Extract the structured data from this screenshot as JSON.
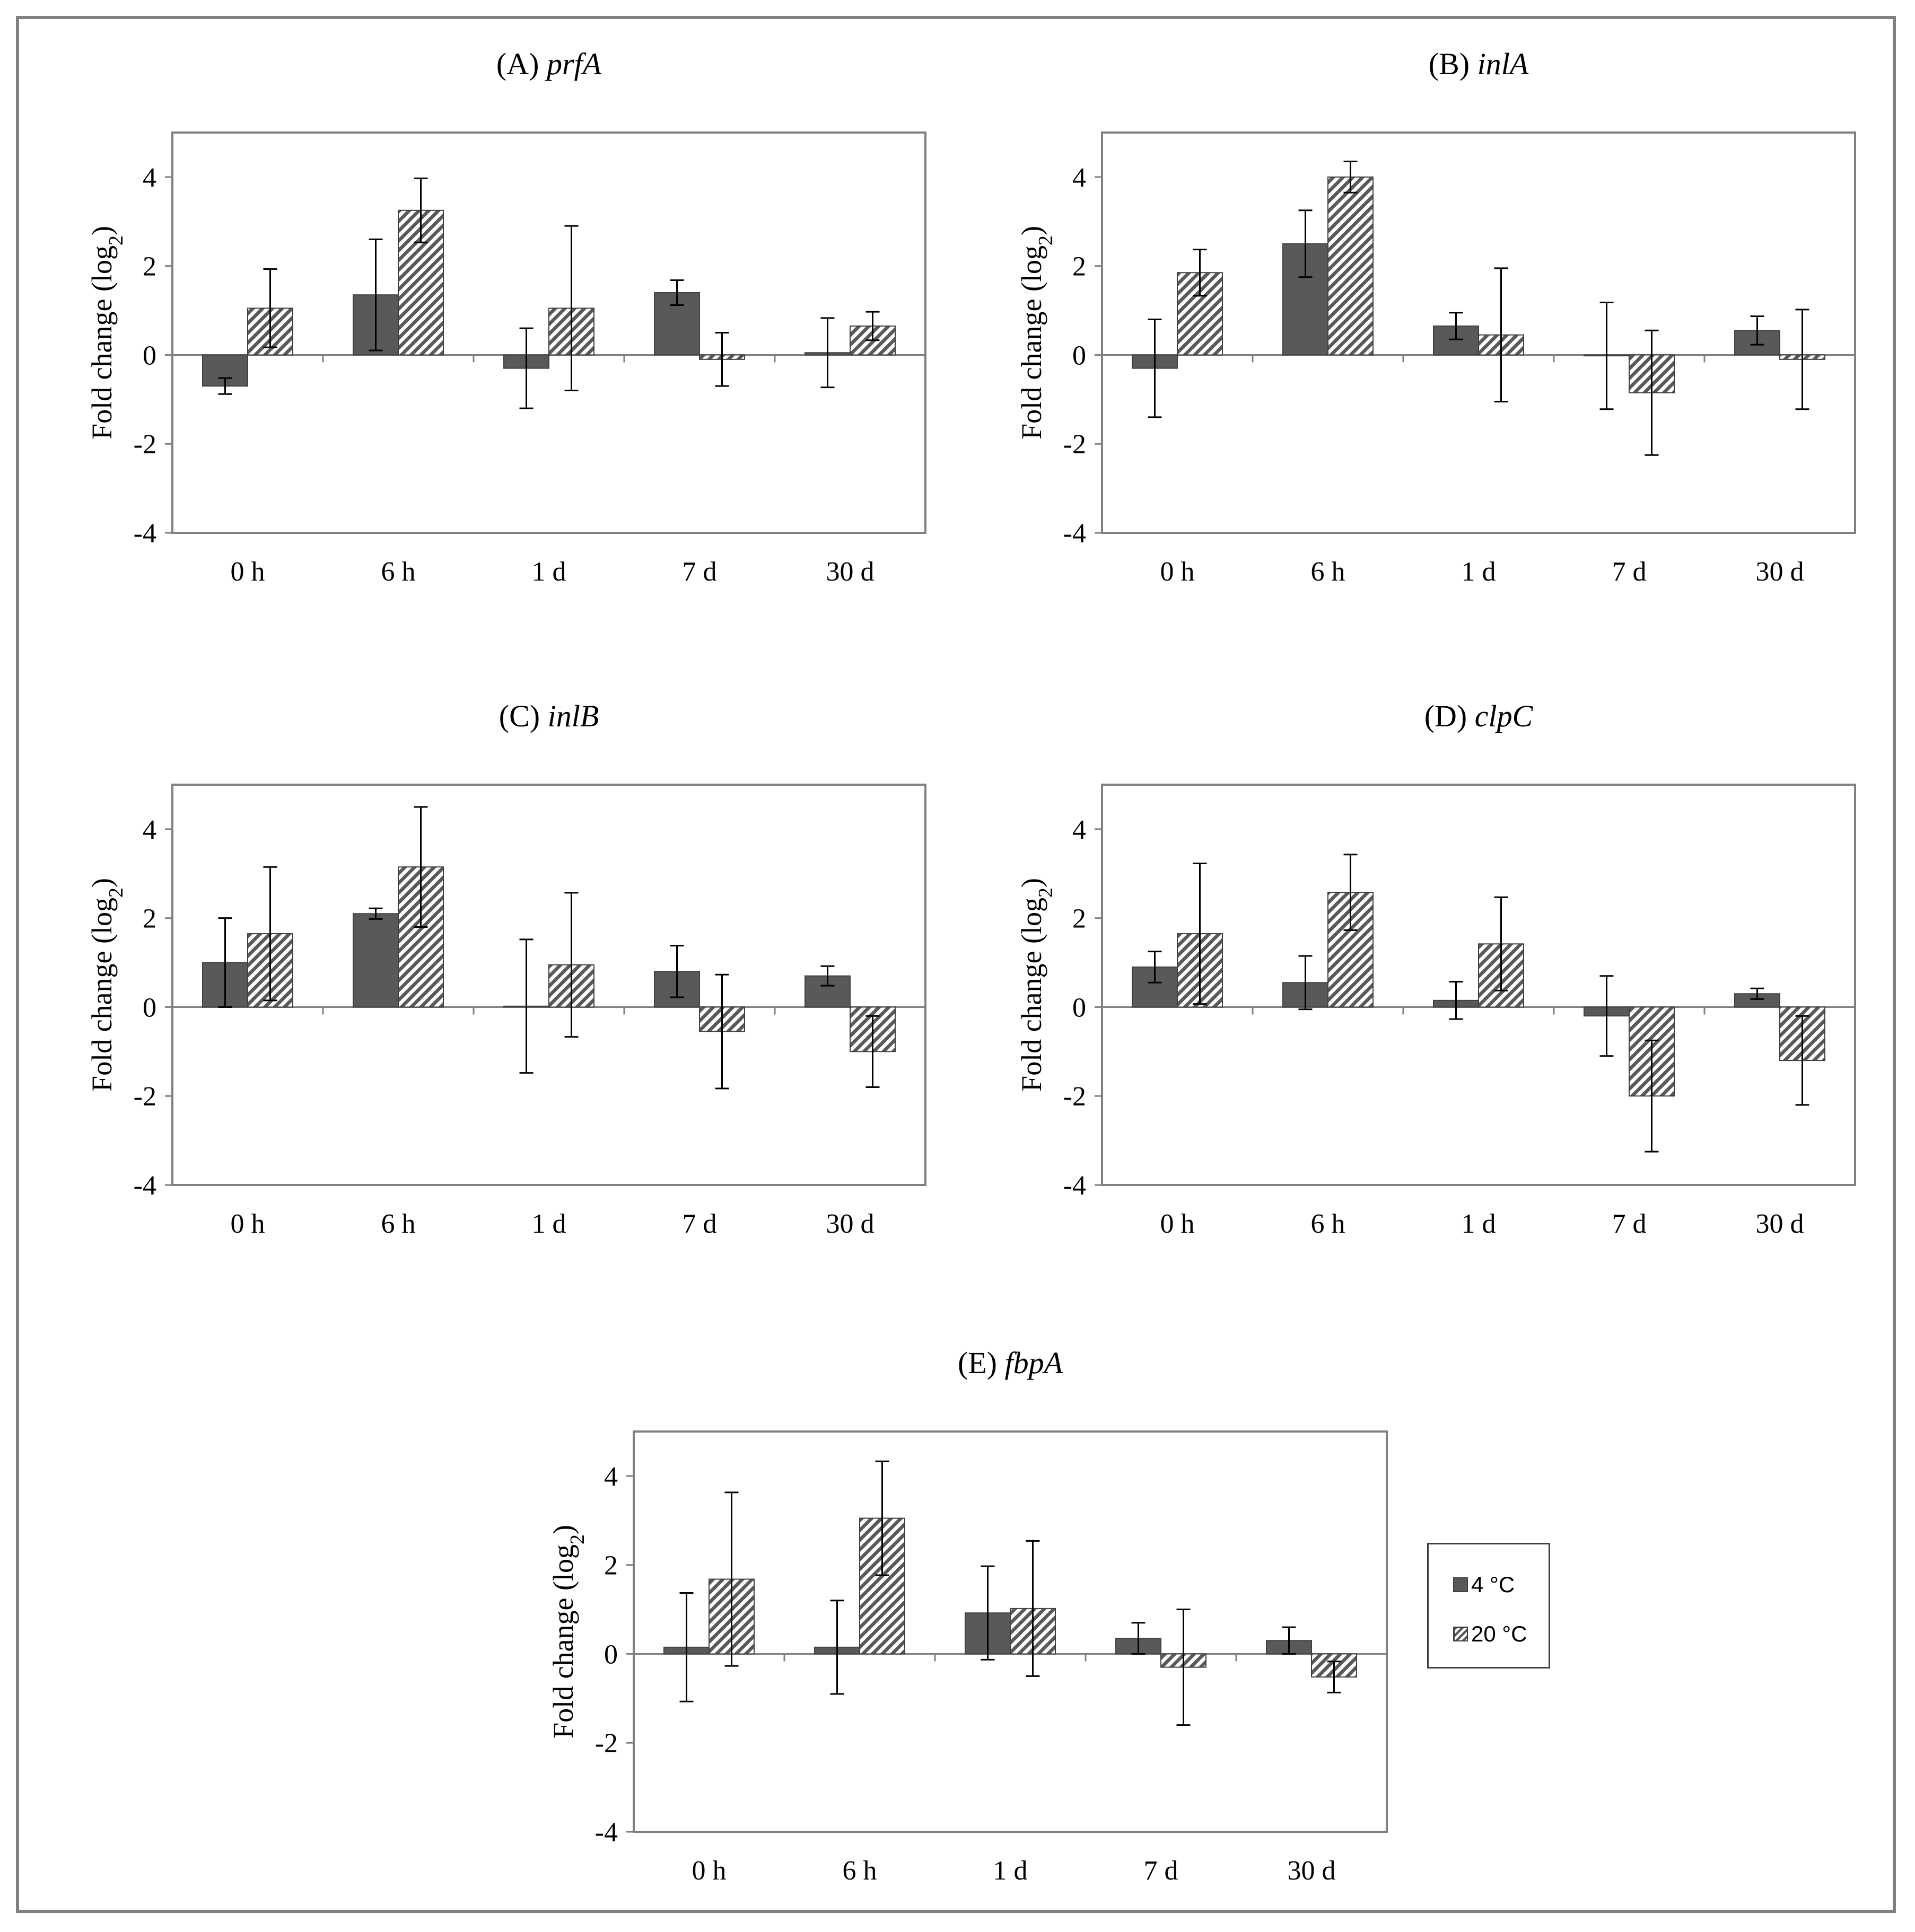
{
  "legend": {
    "series": [
      {
        "name": "4 °C",
        "color": "#595959",
        "pattern": "solid"
      },
      {
        "name": "20 °C",
        "color": "#595959",
        "pattern": "hatched"
      }
    ]
  },
  "chart_data": [
    {
      "type": "bar",
      "id": "A",
      "title_prefix": "(A) ",
      "title_gene": "prfA",
      "ylabel": "Fold change  (log",
      "ylabel_sub": "2",
      "ylabel_end": ")",
      "categories": [
        "0 h",
        "6 h",
        "1 d",
        "7 d",
        "30 d"
      ],
      "ylim": [
        -4,
        5
      ],
      "yticks": [
        -4,
        -2,
        0,
        2,
        4
      ],
      "series": [
        {
          "name": "4 °C",
          "values": [
            -0.7,
            1.35,
            -0.3,
            1.4,
            0.05
          ],
          "errors": [
            0.18,
            1.25,
            0.9,
            0.28,
            0.78
          ]
        },
        {
          "name": "20 °C",
          "values": [
            1.05,
            3.25,
            1.05,
            -0.1,
            0.65
          ],
          "errors": [
            0.88,
            0.72,
            1.85,
            0.6,
            0.32
          ]
        }
      ]
    },
    {
      "type": "bar",
      "id": "B",
      "title_prefix": "(B) ",
      "title_gene": "inlA",
      "ylabel": "Fold change  (log",
      "ylabel_sub": "2",
      "ylabel_end": ")",
      "categories": [
        "0 h",
        "6 h",
        "1 d",
        "7 d",
        "30 d"
      ],
      "ylim": [
        -4,
        5
      ],
      "yticks": [
        -4,
        -2,
        0,
        2,
        4
      ],
      "series": [
        {
          "name": "4 °C",
          "values": [
            -0.3,
            2.5,
            0.65,
            -0.02,
            0.55
          ],
          "errors": [
            1.1,
            0.75,
            0.3,
            1.2,
            0.32
          ]
        },
        {
          "name": "20 °C",
          "values": [
            1.85,
            4.0,
            0.45,
            -0.85,
            -0.1
          ],
          "errors": [
            0.52,
            0.35,
            1.5,
            1.4,
            1.12
          ]
        }
      ]
    },
    {
      "type": "bar",
      "id": "C",
      "title_prefix": "(C) ",
      "title_gene": "inlB",
      "ylabel": "Fold change  (log",
      "ylabel_sub": "2",
      "ylabel_end": ")",
      "categories": [
        "0 h",
        "6 h",
        "1 d",
        "7 d",
        "30 d"
      ],
      "ylim": [
        -4,
        5
      ],
      "yticks": [
        -4,
        -2,
        0,
        2,
        4
      ],
      "series": [
        {
          "name": "4 °C",
          "values": [
            1.0,
            2.1,
            0.02,
            0.8,
            0.7
          ],
          "errors": [
            1.0,
            0.12,
            1.5,
            0.58,
            0.22
          ]
        },
        {
          "name": "20 °C",
          "values": [
            1.65,
            3.15,
            0.95,
            -0.55,
            -1.0
          ],
          "errors": [
            1.5,
            1.35,
            1.62,
            1.28,
            0.8
          ]
        }
      ]
    },
    {
      "type": "bar",
      "id": "D",
      "title_prefix": "(D) ",
      "title_gene": "clpC",
      "ylabel": "Fold change  (log",
      "ylabel_sub": "2",
      "ylabel_end": ")",
      "categories": [
        "0 h",
        "6 h",
        "1 d",
        "7 d",
        "30 d"
      ],
      "ylim": [
        -4,
        5
      ],
      "yticks": [
        -4,
        -2,
        0,
        2,
        4
      ],
      "series": [
        {
          "name": "4 °C",
          "values": [
            0.9,
            0.55,
            0.15,
            -0.2,
            0.3
          ],
          "errors": [
            0.35,
            0.6,
            0.42,
            0.9,
            0.12
          ]
        },
        {
          "name": "20 °C",
          "values": [
            1.65,
            2.58,
            1.42,
            -2.0,
            -1.2
          ],
          "errors": [
            1.58,
            0.85,
            1.05,
            1.25,
            1.0
          ]
        }
      ]
    },
    {
      "type": "bar",
      "id": "E",
      "title_prefix": "(E) ",
      "title_gene": "fbpA",
      "ylabel": "Fold change  (log",
      "ylabel_sub": "2",
      "ylabel_end": ")",
      "categories": [
        "0 h",
        "6 h",
        "1 d",
        "7 d",
        "30 d"
      ],
      "ylim": [
        -4,
        5
      ],
      "yticks": [
        -4,
        -2,
        0,
        2,
        4
      ],
      "series": [
        {
          "name": "4 °C",
          "values": [
            0.15,
            0.15,
            0.92,
            0.35,
            0.3
          ],
          "errors": [
            1.22,
            1.05,
            1.05,
            0.35,
            0.3
          ]
        },
        {
          "name": "20 °C",
          "values": [
            1.68,
            3.05,
            1.02,
            -0.3,
            -0.52
          ],
          "errors": [
            1.95,
            1.28,
            1.52,
            1.3,
            0.35
          ]
        }
      ]
    }
  ]
}
